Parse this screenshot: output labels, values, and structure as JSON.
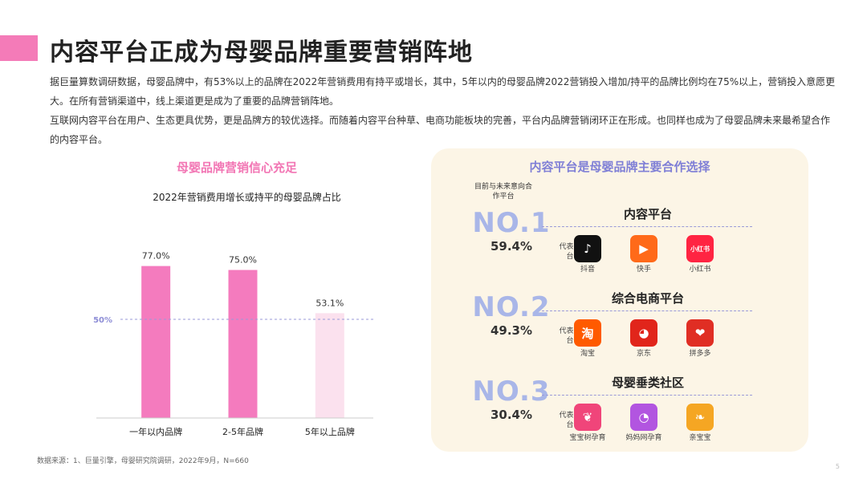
{
  "header": {
    "title": "内容平台正成为母婴品牌重要营销阵地"
  },
  "intro": {
    "p1": "据巨量算数调研数据，母婴品牌中，有53%以上的品牌在2022年营销费用有持平或增长，其中，5年以内的母婴品牌2022营销投入增加/持平的品牌比例均在75%以上，营销投入意愿更大。在所有营销渠道中，线上渠道更是成为了重要的品牌营销阵地。",
    "p2": "互联网内容平台在用户、生态更具优势，更是品牌方的较优选择。而随着内容平台种草、电商功能板块的完善，平台内品牌营销闭环正在形成。也同样也成为了母婴品牌未来最希望合作的内容平台。"
  },
  "left": {
    "heading": "母婴品牌营销信心充足"
  },
  "chart_data": {
    "type": "bar",
    "title": "2022年营销费用增长或持平的母婴品牌占比",
    "categories": [
      "一年以内品牌",
      "2-5年品牌",
      "5年以上品牌"
    ],
    "values": [
      77.0,
      75.0,
      53.1
    ],
    "value_labels": [
      "77.0%",
      "75.0%",
      "53.1%"
    ],
    "ylim": [
      0,
      100
    ],
    "reference_line": {
      "value": 50,
      "label": "50%"
    },
    "colors": [
      "#f47bbe",
      "#f47bbe",
      "#fbe1ee"
    ],
    "grid": false
  },
  "source": "数据来源：1、巨量引擎，母婴研究院调研，2022年9月，N=660",
  "right": {
    "heading": "内容平台是母婴品牌主要合作选择",
    "future_label": "目前与未来意向合作平台",
    "rep_label": "代表平台",
    "ranks": [
      {
        "no": "NO.1",
        "pct": "59.4%",
        "title": "内容平台",
        "apps": [
          {
            "name": "抖音",
            "icon": "douyin-icon",
            "color": "#111111",
            "glyph": "♪"
          },
          {
            "name": "快手",
            "icon": "kuaishou-icon",
            "color": "#ff6a1a",
            "glyph": "▶"
          },
          {
            "name": "小红书",
            "icon": "xiaohongshu-icon",
            "color": "#ff2442",
            "glyph": "小红书"
          }
        ]
      },
      {
        "no": "NO.2",
        "pct": "49.3%",
        "title": "综合电商平台",
        "apps": [
          {
            "name": "淘宝",
            "icon": "taobao-icon",
            "color": "#ff5a00",
            "glyph": "淘"
          },
          {
            "name": "京东",
            "icon": "jd-icon",
            "color": "#e1251b",
            "glyph": "◕"
          },
          {
            "name": "拼多多",
            "icon": "pinduoduo-icon",
            "color": "#e02e24",
            "glyph": "❤"
          }
        ]
      },
      {
        "no": "NO.3",
        "pct": "30.4%",
        "title": "母婴垂类社区",
        "apps": [
          {
            "name": "宝宝树孕育",
            "icon": "babytree-icon",
            "color": "#f0457a",
            "glyph": "❦"
          },
          {
            "name": "妈妈网孕育",
            "icon": "mamawang-icon",
            "color": "#b255e0",
            "glyph": "◔"
          },
          {
            "name": "亲宝宝",
            "icon": "qinbaobao-icon",
            "color": "#f5a623",
            "glyph": "❧"
          }
        ]
      }
    ]
  },
  "footer": {
    "page_number": "5"
  }
}
